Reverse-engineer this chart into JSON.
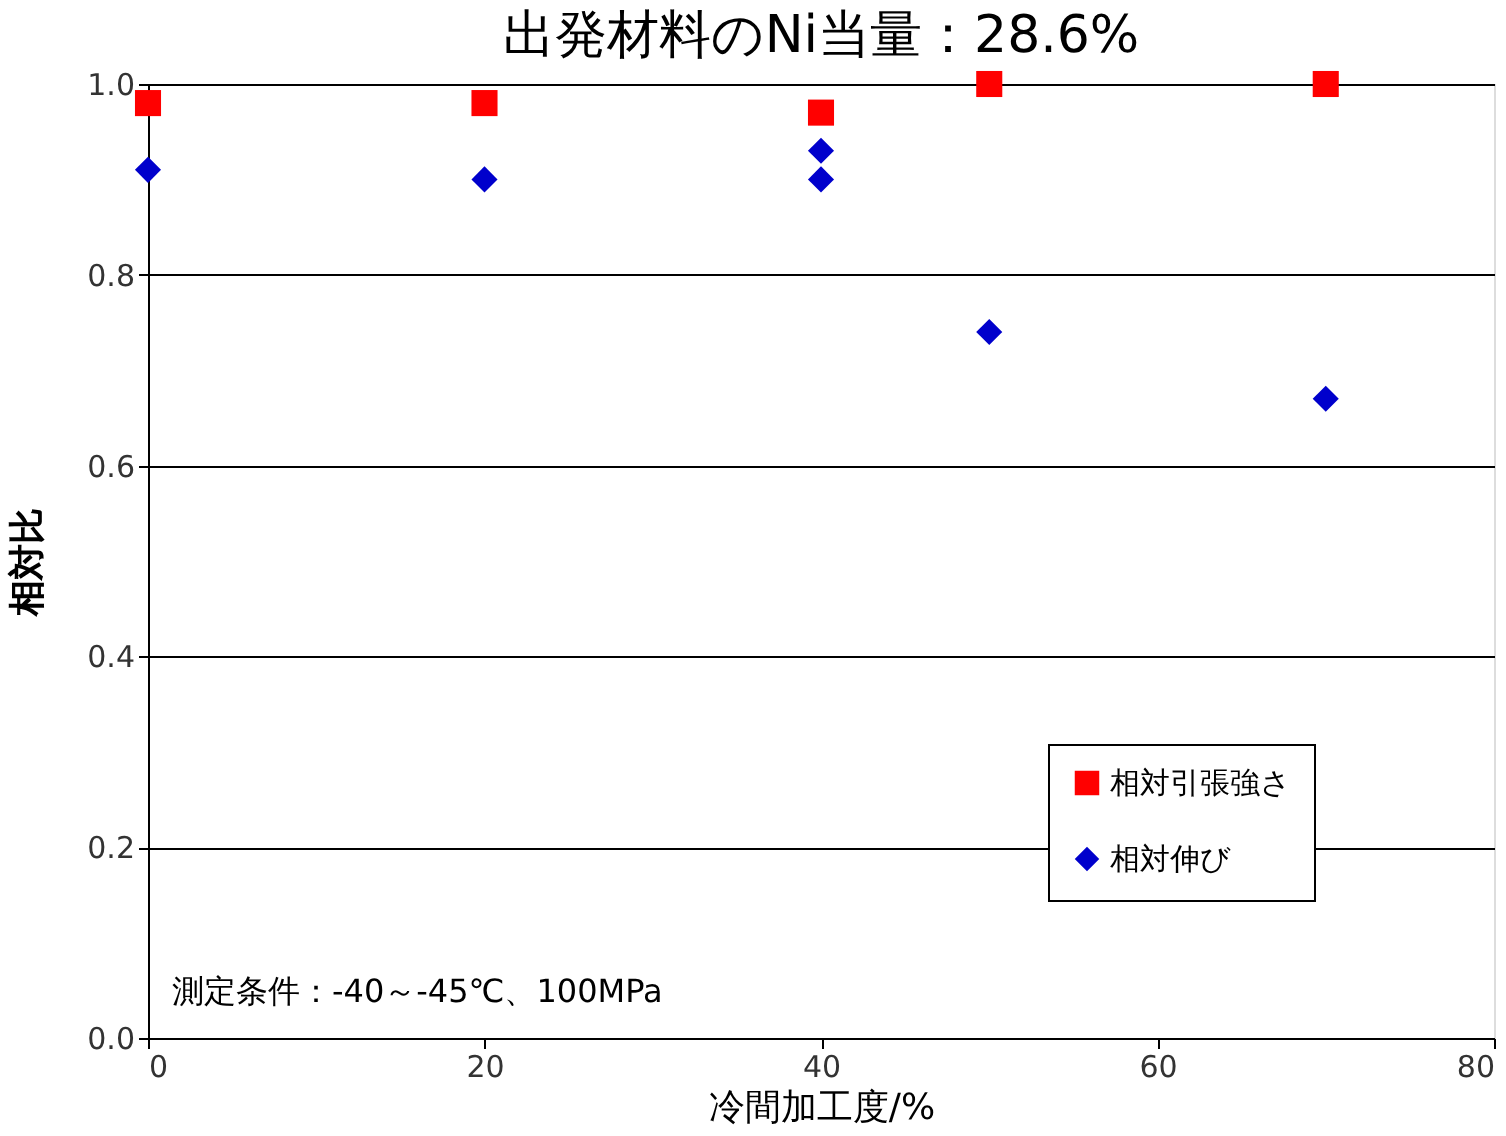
{
  "chart_data": {
    "type": "scatter",
    "title": "出発材料のNi当量：28.6%",
    "xlabel": "冷間加工度/%",
    "ylabel": "相対比",
    "xlim": [
      0,
      80
    ],
    "xticks": [
      0,
      20,
      40,
      60,
      80
    ],
    "ylim": [
      0,
      1.0
    ],
    "yticks": [
      {
        "value": 0,
        "label": "0.0"
      },
      {
        "value": 0.2,
        "label": "0.2"
      },
      {
        "value": 0.4,
        "label": "0.4"
      },
      {
        "value": 0.6,
        "label": "0.6"
      },
      {
        "value": 0.8,
        "label": "0.8"
      },
      {
        "value": 1.0,
        "label": "1.0"
      }
    ],
    "grid": "y",
    "legend": "bottom right",
    "series": [
      {
        "name": "相対引張強さ",
        "color": "#ff0000",
        "marker": "square",
        "x": [
          0,
          20,
          40,
          50,
          70
        ],
        "values": [
          0.98,
          0.98,
          0.97,
          1.0,
          1.0
        ]
      },
      {
        "name": "相対伸び",
        "color": "#0000cc",
        "marker": "diamond",
        "x": [
          0,
          20,
          40,
          40,
          50,
          70
        ],
        "values": [
          0.91,
          0.9,
          0.93,
          0.9,
          0.74,
          0.67
        ]
      }
    ],
    "annotations": [
      "測定条件：-40～-45℃、100MPa"
    ]
  }
}
